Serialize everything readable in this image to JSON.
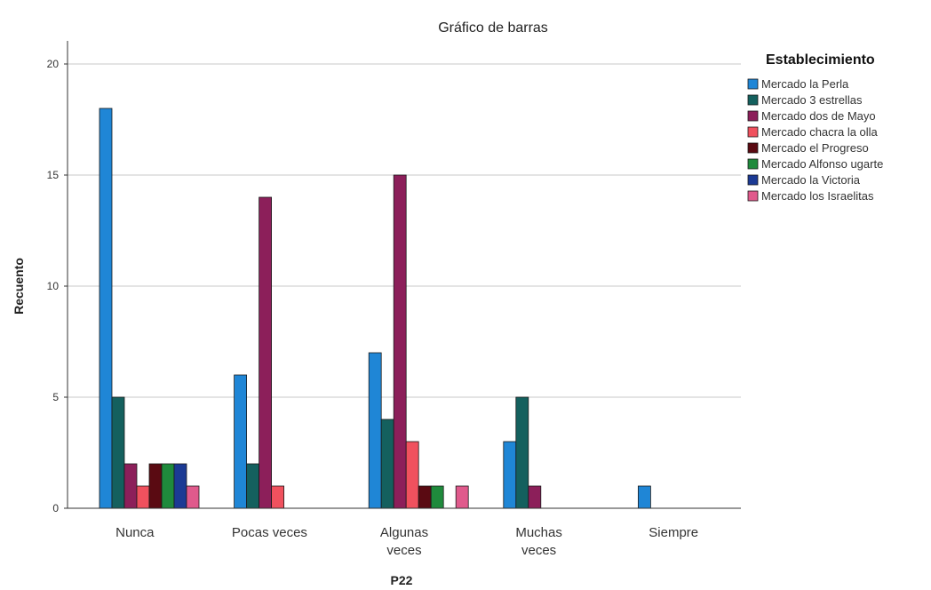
{
  "chart_data": {
    "type": "bar",
    "title": "Gráfico de barras",
    "xlabel": "P22",
    "ylabel": "Recuento",
    "ylim": [
      0,
      20
    ],
    "yticks": [
      0,
      5,
      10,
      15,
      20
    ],
    "grid": true,
    "legend_title": "Establecimiento",
    "legend_position": "right",
    "categories": [
      [
        "Nunca"
      ],
      [
        "Pocas veces"
      ],
      [
        "Algunas",
        "veces"
      ],
      [
        "Muchas",
        "veces"
      ],
      [
        "Siempre"
      ]
    ],
    "series": [
      {
        "name": "Mercado la Perla",
        "color": "#1f86d6",
        "values": [
          18,
          6,
          7,
          3,
          1
        ]
      },
      {
        "name": "Mercado 3 estrellas",
        "color": "#14605e",
        "values": [
          5,
          2,
          4,
          5,
          0
        ]
      },
      {
        "name": "Mercado dos de Mayo",
        "color": "#8c1f5a",
        "values": [
          2,
          14,
          15,
          1,
          0
        ]
      },
      {
        "name": "Mercado chacra la olla",
        "color": "#f0515e",
        "values": [
          1,
          1,
          3,
          0,
          0
        ]
      },
      {
        "name": "Mercado el Progreso",
        "color": "#5a0a12",
        "values": [
          2,
          0,
          1,
          0,
          0
        ]
      },
      {
        "name": "Mercado Alfonso ugarte",
        "color": "#1f8a3c",
        "values": [
          2,
          0,
          1,
          0,
          0
        ]
      },
      {
        "name": "Mercado la Victoria",
        "color": "#1b3a94",
        "values": [
          2,
          0,
          0,
          0,
          0
        ]
      },
      {
        "name": "Mercado los Israelitas",
        "color": "#e05a8c",
        "values": [
          1,
          0,
          1,
          0,
          0
        ]
      }
    ]
  }
}
